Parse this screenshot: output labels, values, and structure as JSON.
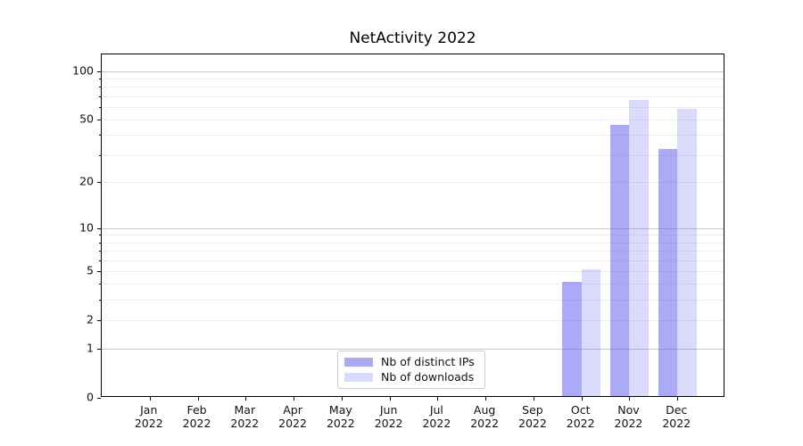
{
  "chart_data": {
    "type": "bar",
    "title": "NetActivity 2022",
    "year": "2022",
    "categories": [
      "Jan",
      "Feb",
      "Mar",
      "Apr",
      "May",
      "Jun",
      "Jul",
      "Aug",
      "Sep",
      "Oct",
      "Nov",
      "Dec"
    ],
    "series": [
      {
        "name": "Nb of distinct IPs",
        "color": "#a9a9f4",
        "color_rgba": "rgba(85,85,240,0.5)",
        "values": [
          0,
          0,
          0,
          0,
          0,
          0,
          0,
          0,
          0,
          4,
          45,
          32
        ]
      },
      {
        "name": "Nb of downloads",
        "color": "#dadaf9",
        "color_rgba": "rgba(85,85,240,0.215)",
        "values": [
          0,
          0,
          0,
          0,
          0,
          0,
          0,
          0,
          0,
          5,
          65,
          57
        ]
      }
    ],
    "yscale": "symlog_ln1p",
    "ylim": [
      0,
      126
    ],
    "y_tick_labels": [
      100,
      50,
      20,
      10,
      5,
      2,
      1,
      0
    ],
    "y_major_gridlines": [
      1,
      10,
      100
    ],
    "y_minor_gridlines": [
      2,
      3,
      4,
      5,
      6,
      7,
      8,
      9,
      20,
      30,
      40,
      50,
      60,
      70,
      80,
      90
    ],
    "y_unlabeled_minor_ticks": [
      3,
      4,
      6,
      7,
      8,
      9,
      30,
      40,
      60,
      70,
      80,
      90
    ],
    "grid": true,
    "legend_position": "lower center",
    "xlabel": "",
    "ylabel": ""
  },
  "style_colors": {
    "major_grid": "#c9c9c9",
    "minor_grid": "#ececec",
    "axis": "#000000",
    "legend_border": "#cccccc"
  }
}
